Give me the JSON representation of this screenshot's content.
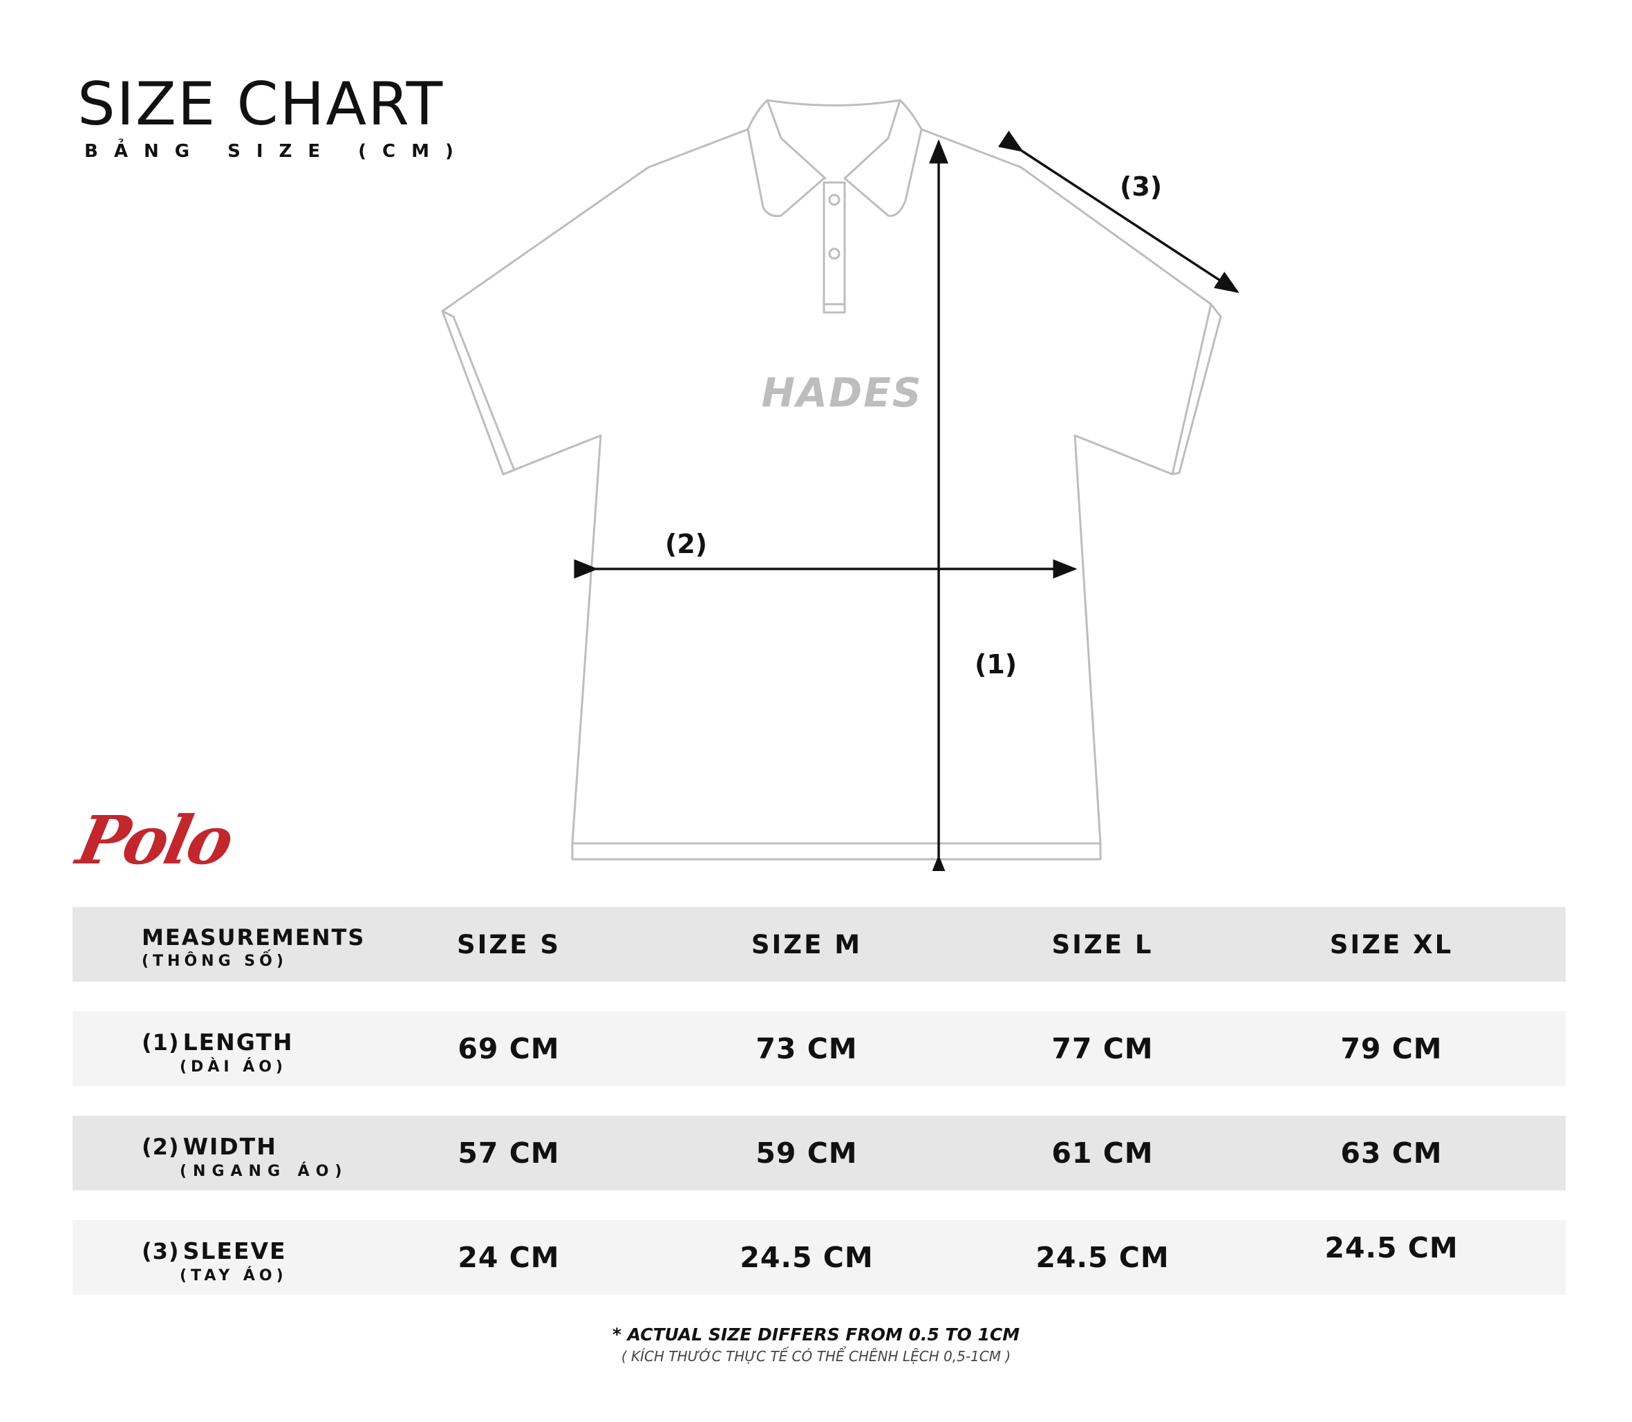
{
  "header": {
    "title": "SIZE CHART",
    "subtitle": "BẢNG SIZE (CM)"
  },
  "product_name": "Polo",
  "diagram": {
    "brand_text": "HADES",
    "label_length": "(1)",
    "label_width": "(2)",
    "label_sleeve": "(3)"
  },
  "table": {
    "header": {
      "label": "MEASUREMENTS",
      "sublabel": "(THÔNG SỐ)",
      "sizes": [
        "SIZE S",
        "SIZE M",
        "SIZE L",
        "SIZE XL"
      ]
    },
    "rows": [
      {
        "num": "(1)",
        "label": "LENGTH",
        "sublabel": "(DÀI ÁO)",
        "values": [
          "69 CM",
          "73 CM",
          "77 CM",
          "79 CM"
        ]
      },
      {
        "num": "(2)",
        "label": "WIDTH",
        "sublabel": "(NGANG ÁO)",
        "values": [
          "57 CM",
          "59 CM",
          "61 CM",
          "63 CM"
        ]
      },
      {
        "num": "(3)",
        "label": "SLEEVE",
        "sublabel": "(TAY ÁO)",
        "values": [
          "24 CM",
          "24.5 CM",
          "24.5 CM",
          "24.5 CM"
        ]
      }
    ]
  },
  "footer": {
    "note": "* ACTUAL SIZE DIFFERS FROM 0.5 TO 1CM",
    "note_vi": "( KÍCH THƯỚC THỰC TẾ CÓ THỂ CHÊNH LỆCH 0,5-1CM )"
  },
  "colors": {
    "accent": "#c1272d",
    "row_dark": "#e6e6e6",
    "row_light": "#f4f4f4",
    "outline": "#bdbdbd"
  }
}
